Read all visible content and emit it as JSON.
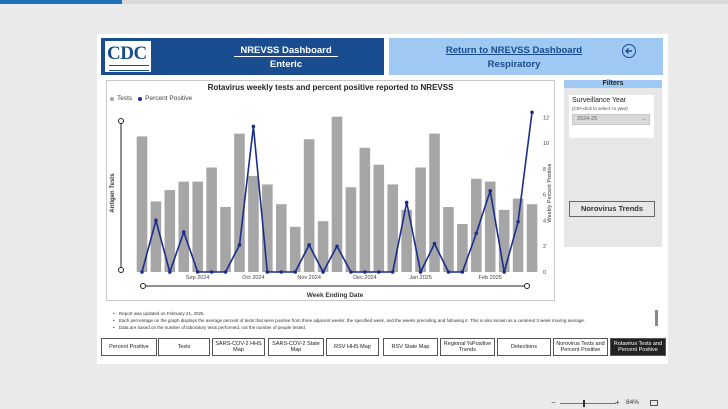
{
  "header": {
    "left_title_1": "NREVSS Dashboard",
    "left_title_2": "Enteric",
    "right_title_1": "Return to NREVSS Dashboard",
    "right_title_2": "Respiratory",
    "logo_text": "CDC",
    "back_icon": "circle-arrow-left-icon"
  },
  "chart": {
    "legend_tests": "Tests",
    "legend_percent": "Percent Positive"
  },
  "chart_data": {
    "type": "bar",
    "title": "Rotavirus weekly tests and percent positive reported to NREVSS",
    "xlabel": "Week Ending Date",
    "ylabel": "Antigen Tests",
    "y2label": "Weekly Percent Positive",
    "x_tick_labels": [
      "Sep 2024",
      "Oct 2024",
      "Nov 2024",
      "Dec 2024",
      "Jan 2025",
      "Feb 2025"
    ],
    "y2_ticks": [
      0,
      2,
      4,
      6,
      8,
      10,
      12
    ],
    "y2lim": [
      0,
      12.5
    ],
    "ylim": [
      0,
      57
    ],
    "colors": {
      "bars": "#a6a6a6",
      "line": "#1a2d8c",
      "accent": "#1a4d8f"
    },
    "series": [
      {
        "name": "Tests",
        "type": "bar",
        "values": [
          48,
          25,
          29,
          32,
          32,
          37,
          23,
          49,
          34,
          31,
          24,
          16,
          47,
          18,
          55,
          30,
          44,
          38,
          31,
          22,
          37,
          49,
          23,
          17,
          33,
          32,
          22,
          26,
          24
        ]
      },
      {
        "name": "Percent Positive",
        "type": "line",
        "values": [
          0,
          4,
          0,
          3.1,
          0,
          0,
          0,
          2.1,
          11.3,
          0,
          0,
          0,
          2.1,
          0,
          2,
          0,
          0,
          0,
          0,
          5.4,
          0,
          2.2,
          0,
          0,
          3,
          6.3,
          0,
          3.9,
          12.4
        ]
      }
    ]
  },
  "filters": {
    "title": "Filters",
    "surveillance_label": "Surveillance Year",
    "surveillance_hint": "(Ctrl+click to select >1 year)",
    "surveillance_value": "2024-25",
    "norovirus_button": "Norovirus Trends"
  },
  "notes": [
    "Report was updated on  February 21, 2025.",
    "Each percentage on the graph displays the average percent of tests that were positive from three adjacent weeks: the specified week, and the weeks preceding and following it. This is also known as a centered 3 week moving average.",
    "Data are based on the number of laboratory tests performed, not the number of people tested."
  ],
  "tabs": [
    "Percent Positive",
    "Tests",
    "SARS-COV-2 HHS Map",
    "SARS-COV-2 State Map",
    "RSV HHS Map",
    "RSV State Map",
    "Regional %Positive Trends",
    "Detections",
    "Norovirus Tests and Percent Positive",
    "Rotavirus Tests and Percent Positive"
  ],
  "active_tab_index": 9,
  "status": {
    "zoom_minus": "−",
    "zoom_plus": "+",
    "zoom_level": "84%"
  }
}
